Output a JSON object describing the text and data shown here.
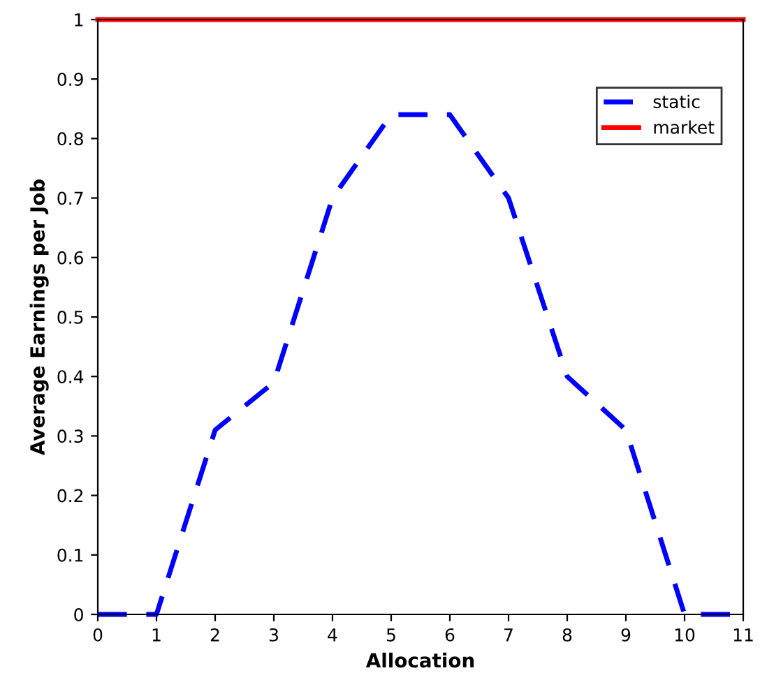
{
  "chart_data": {
    "type": "line",
    "xlabel": "Allocation",
    "ylabel": "Average Earnings per Job",
    "x": [
      0,
      1,
      2,
      3,
      4,
      5,
      6,
      7,
      8,
      9,
      10,
      11
    ],
    "series": [
      {
        "name": "static",
        "color": "#0000ff",
        "line_style": "dashed",
        "values": [
          0,
          0,
          0.31,
          0.39,
          0.7,
          0.84,
          0.84,
          0.7,
          0.4,
          0.31,
          0,
          0
        ]
      },
      {
        "name": "market",
        "color": "#ff0000",
        "line_style": "solid",
        "values": [
          1,
          1,
          1,
          1,
          1,
          1,
          1,
          1,
          1,
          1,
          1,
          1
        ]
      }
    ],
    "xlim": [
      0,
      11
    ],
    "xticks": [
      0,
      1,
      2,
      3,
      4,
      5,
      6,
      7,
      8,
      9,
      10,
      11
    ],
    "ylim": [
      0,
      1
    ],
    "yticks": [
      0,
      0.1,
      0.2,
      0.3,
      0.4,
      0.5,
      0.6,
      0.7,
      0.8,
      0.9,
      1
    ],
    "grid": false,
    "legend": "top right",
    "marker": "none"
  }
}
